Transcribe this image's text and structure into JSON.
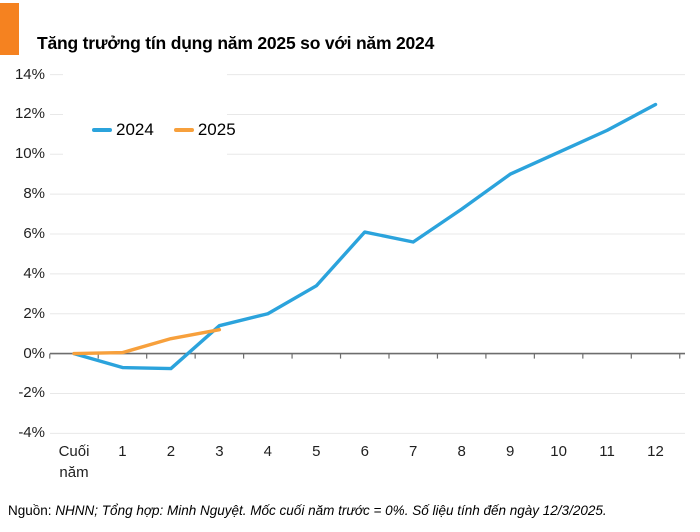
{
  "header": {
    "title": "Tăng trưởng tín dụng năm 2025 so với năm 2024",
    "accent_color": "#f58220"
  },
  "chart_data": {
    "type": "line",
    "title": "Tăng trưởng tín dụng năm 2025 so với năm 2024",
    "x_categories": [
      "Cuối năm",
      "1",
      "2",
      "3",
      "4",
      "5",
      "6",
      "7",
      "8",
      "9",
      "10",
      "11",
      "12"
    ],
    "series": [
      {
        "name": "2024",
        "color": "#2ba3dc",
        "values": [
          0,
          -0.7,
          -0.75,
          1.4,
          2.0,
          3.4,
          6.1,
          5.6,
          7.25,
          9.0,
          10.1,
          11.2,
          12.5
        ]
      },
      {
        "name": "2025",
        "color": "#f7a03c",
        "values": [
          0,
          0.05,
          0.75,
          1.2
        ]
      }
    ],
    "ylim": [
      -4,
      14
    ],
    "yticks": [
      14,
      12,
      10,
      8,
      6,
      4,
      2,
      0,
      -2,
      -4
    ],
    "ytick_suffix": "%",
    "grid": true,
    "gridline_color": "#e8e8e8",
    "axis_color": "#6d6d6d",
    "legend_position": "top-left"
  },
  "footer": {
    "source_label": "Nguồn:",
    "note": "NHNN; Tổng hợp: Minh Nguyệt. Mốc cuối năm trước = 0%.  Số liệu tính đến ngày 12/3/2025."
  }
}
